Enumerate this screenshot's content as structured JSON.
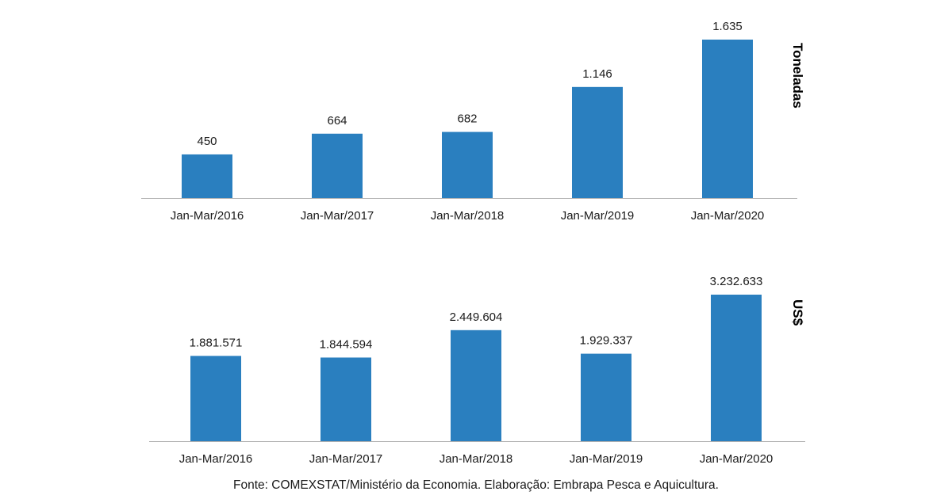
{
  "chart_data": [
    {
      "type": "bar",
      "categories": [
        "Jan-Mar/2016",
        "Jan-Mar/2017",
        "Jan-Mar/2018",
        "Jan-Mar/2019",
        "Jan-Mar/2020"
      ],
      "values": [
        450,
        664,
        682,
        1146,
        1635
      ],
      "value_labels": [
        "450",
        "664",
        "682",
        "1.146",
        "1.635"
      ],
      "ylabel": "Toneladas",
      "ylim": [
        0,
        1635
      ],
      "grid": false,
      "color": "#2a7fbf"
    },
    {
      "type": "bar",
      "categories": [
        "Jan-Mar/2016",
        "Jan-Mar/2017",
        "Jan-Mar/2018",
        "Jan-Mar/2019",
        "Jan-Mar/2020"
      ],
      "values": [
        1881571,
        1844594,
        2449604,
        1929337,
        3232633
      ],
      "value_labels": [
        "1.881.571",
        "1.844.594",
        "2.449.604",
        "1.929.337",
        "3.232.633"
      ],
      "ylabel": "US$",
      "ylim": [
        0,
        3232633
      ],
      "grid": false,
      "color": "#2a7fbf"
    }
  ],
  "source": "Fonte: COMEXSTAT/Ministério da Economia. Elaboração: Embrapa Pesca e Aquicultura."
}
